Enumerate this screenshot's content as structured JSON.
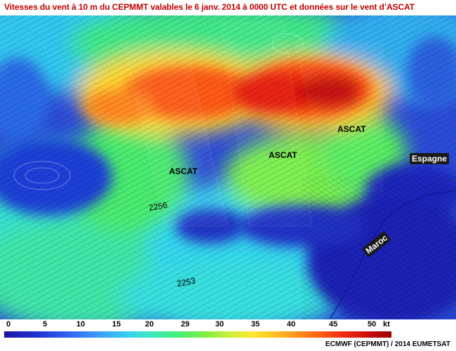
{
  "title": "Vitesses du vent à 10 m du CEPMMT valables le 6 janv. 2014 à 0000 UTC et données sur le vent d’ASCAT",
  "map": {
    "ascat_labels": [
      "ASCAT",
      "ASCAT",
      "ASCAT"
    ],
    "track_labels": [
      "2256",
      "2253"
    ],
    "country_labels": {
      "spain": "Espagne",
      "morocco": "Maroc"
    }
  },
  "legend": {
    "ticks": [
      "0",
      "5",
      "10",
      "15",
      "20",
      "29",
      "30",
      "35",
      "40",
      "45",
      "50"
    ],
    "unit": "kt",
    "colors": [
      "#1a12a8",
      "#2f5ff0",
      "#38d0f0",
      "#40ee80",
      "#c8f03a",
      "#ffe830",
      "#ff6a18",
      "#c40a0a"
    ]
  },
  "credit": "ECMWF (CEPMMT) / 2014 EUMETSAT"
}
